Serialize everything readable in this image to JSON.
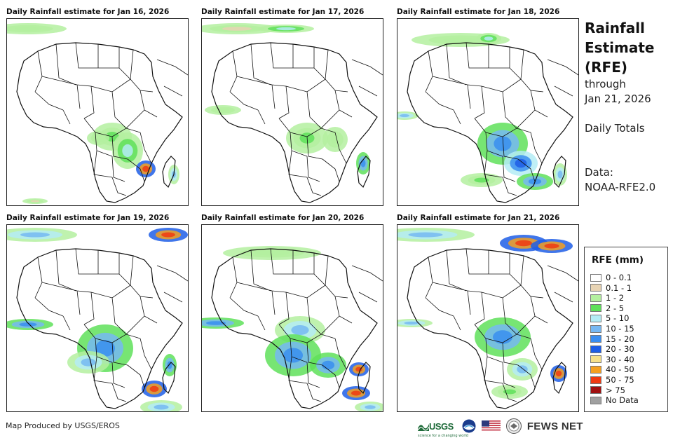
{
  "panels": [
    {
      "title": "Daily Rainfall estimate for Jan 16, 2026"
    },
    {
      "title": "Daily Rainfall estimate for Jan 17, 2026"
    },
    {
      "title": "Daily Rainfall estimate for Jan 18, 2026"
    },
    {
      "title": "Daily Rainfall estimate for Jan 19, 2026"
    },
    {
      "title": "Daily Rainfall estimate for Jan 20, 2026"
    },
    {
      "title": "Daily Rainfall estimate for Jan 21, 2026"
    }
  ],
  "side": {
    "title_lines": [
      "Rainfall",
      "Estimate",
      "(RFE)"
    ],
    "through": "through",
    "date": "Jan 21, 2026",
    "totals": "Daily Totals",
    "data_label": "Data:",
    "data_source": "NOAA-RFE2.0"
  },
  "legend": {
    "title": "RFE (mm)",
    "items": [
      {
        "label": "0 - 0.1",
        "color": "#ffffff"
      },
      {
        "label": "0.1 - 1",
        "color": "#e8d4b4"
      },
      {
        "label": "1 - 2",
        "color": "#b4f0a0"
      },
      {
        "label": "2 - 5",
        "color": "#5fe05a"
      },
      {
        "label": "5 - 10",
        "color": "#b4ecf4"
      },
      {
        "label": "10 - 15",
        "color": "#76b8f2"
      },
      {
        "label": "15 - 20",
        "color": "#3a8ef0"
      },
      {
        "label": "20 - 30",
        "color": "#1e5ee6"
      },
      {
        "label": "30 - 40",
        "color": "#f6e08a"
      },
      {
        "label": "40 - 50",
        "color": "#f4a020"
      },
      {
        "label": "50 - 75",
        "color": "#ee3a12"
      },
      {
        "label": "> 75",
        "color": "#a01010"
      },
      {
        "label": "No Data",
        "color": "#a0a0a0"
      }
    ]
  },
  "footer": {
    "credit": "Map Produced by USGS/EROS",
    "usgs": "USGS",
    "usgs_tagline": "science for a changing world",
    "fews": "FEWS NET"
  }
}
